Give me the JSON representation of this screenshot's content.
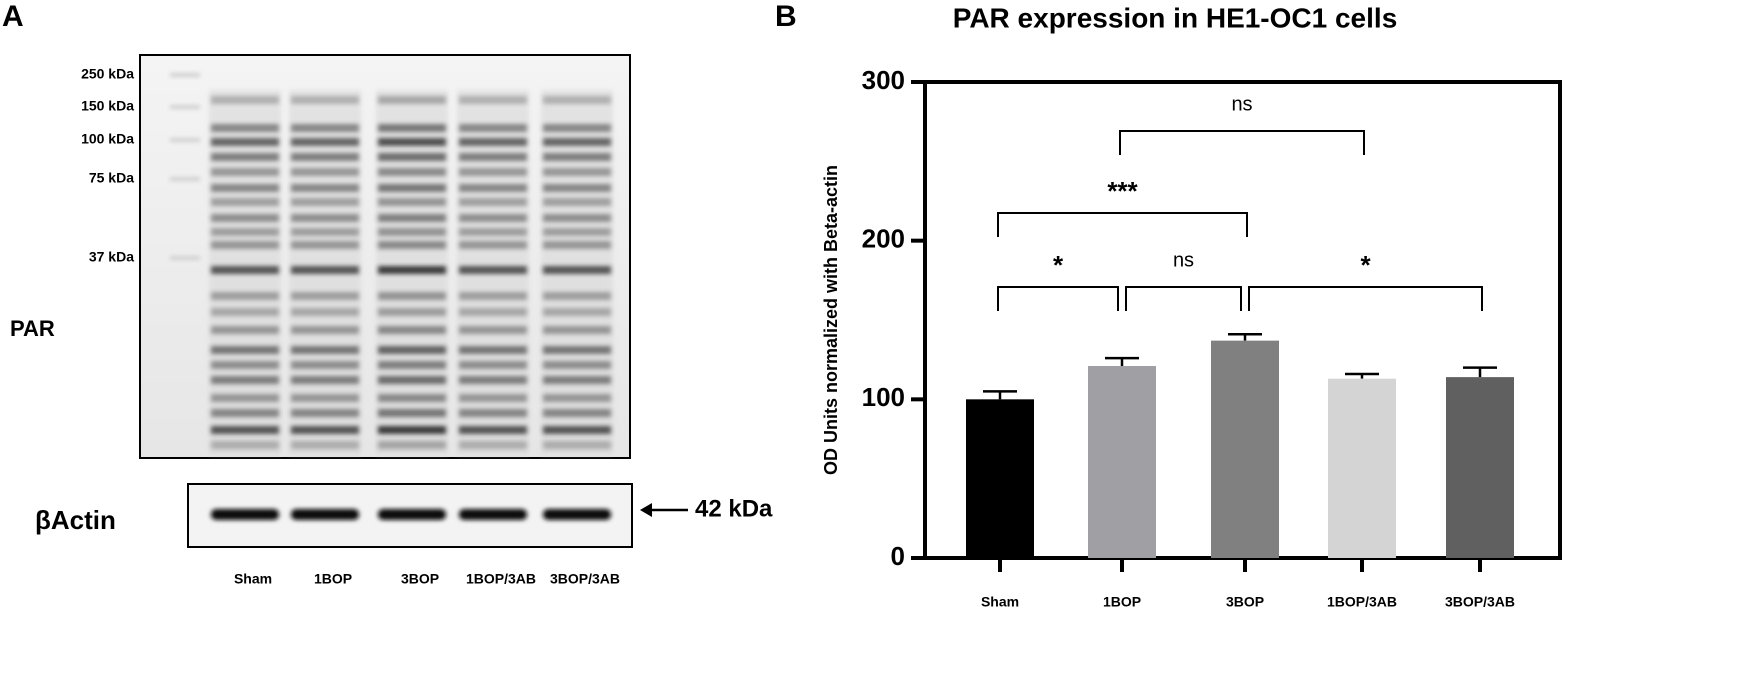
{
  "panel_a": {
    "label": "A",
    "markers": [
      "250 kDa",
      "150 kDa",
      "100 kDa",
      "75 kDa",
      "37 kDa"
    ],
    "blot_label": "PAR",
    "loading_label": "βActin",
    "loading_size": "42 kDa",
    "lanes": [
      "Sham",
      "1BOP",
      "3BOP",
      "1BOP/3AB",
      "3BOP/3AB"
    ]
  },
  "chart_data": {
    "type": "bar",
    "panel_label": "B",
    "title": "PAR expression in HE1-OC1 cells",
    "y_label": "OD Units normalized with Beta-actin",
    "categories": [
      "Sham",
      "1BOP",
      "3BOP",
      "1BOP/3AB",
      "3BOP/3AB"
    ],
    "values": [
      100,
      121,
      137,
      113,
      114
    ],
    "errors": [
      5,
      5,
      4,
      3,
      6
    ],
    "colors": [
      "#000000",
      "#a0a0a4",
      "#808080",
      "#d4d4d4",
      "#606060"
    ],
    "ylim": [
      0,
      300
    ],
    "yticks": [
      0,
      100,
      200,
      300
    ],
    "annotations": [
      "ns",
      "***",
      "*",
      "ns",
      "*"
    ]
  }
}
